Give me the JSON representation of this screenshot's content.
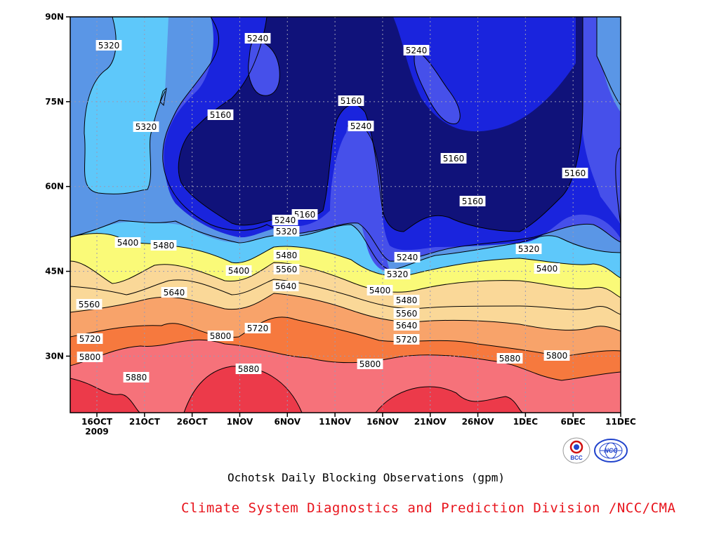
{
  "chart_data": {
    "type": "contour",
    "title": "Ochotsk Daily Blocking Observations (gpm)",
    "credit": "Climate System Diagnostics and Prediction Division /NCC/CMA",
    "x_ticks": [
      {
        "label": "16OCT",
        "sub": "2009"
      },
      {
        "label": "21OCT"
      },
      {
        "label": "26OCT"
      },
      {
        "label": "1NOV"
      },
      {
        "label": "6NOV"
      },
      {
        "label": "11NOV"
      },
      {
        "label": "16NOV"
      },
      {
        "label": "21NOV"
      },
      {
        "label": "26NOV"
      },
      {
        "label": "1DEC"
      },
      {
        "label": "6DEC"
      },
      {
        "label": "11DEC"
      }
    ],
    "y_ticks": [
      "90N",
      "75N",
      "60N",
      "45N",
      "30N"
    ],
    "ylim": [
      20,
      90
    ],
    "contour_levels": [
      5160,
      5240,
      5320,
      5400,
      5480,
      5560,
      5640,
      5720,
      5800,
      5880
    ],
    "fill_colors": {
      "below_5160": "#10127a",
      "5160_5240": "#1a24dd",
      "5240_5320": "#4650ea",
      "5320_5400": "#5a96e6",
      "5400_5480": "#5ec8fa",
      "5480_5560": "#fafa78",
      "5560_5640": "#fad898",
      "5640_5720": "#f8a36a",
      "5720_5800": "#f6793e",
      "5800_5880": "#f6727a",
      "above_5880": "#ec3a4a"
    },
    "contour_labels": [
      "5320",
      "5240",
      "5240",
      "5160",
      "5320",
      "5240",
      "5160",
      "5160",
      "5160",
      "5160",
      "5160",
      "5240",
      "5320",
      "5400",
      "5480",
      "5240",
      "5320",
      "5400",
      "5480",
      "5560",
      "5640",
      "5560",
      "5640",
      "5400",
      "5320",
      "5400",
      "5480",
      "5560",
      "5640",
      "5720",
      "5720",
      "5720",
      "5800",
      "5800",
      "5800",
      "5800",
      "5880",
      "5880",
      "5880"
    ]
  },
  "logos": {
    "bcc_text": "BCC",
    "ncc_text": "NCC"
  },
  "colors": {
    "credit": "#e8141c",
    "logo_blue": "#2244cc",
    "logo_red": "#d01010"
  }
}
